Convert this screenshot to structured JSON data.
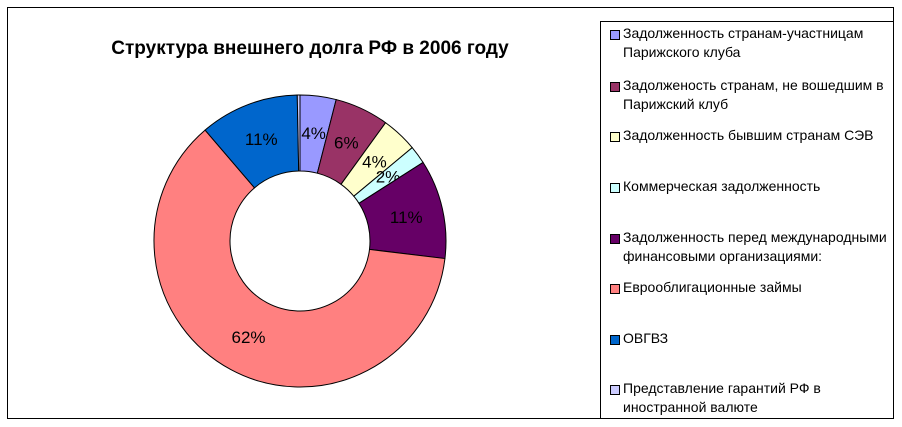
{
  "chart_data": {
    "type": "pie",
    "variant": "doughnut",
    "title": "Структура внешнего долга РФ в 2006 году",
    "legend_position": "right",
    "slices": [
      {
        "label": "Задолженность странам-участницам Парижского клуба",
        "value": 4,
        "display": "4%",
        "color": "#9999FF"
      },
      {
        "label": "Задолженость странам, не вошедшим в Парижский клуб",
        "value": 6,
        "display": "6%",
        "color": "#993366"
      },
      {
        "label": "Задолженность бывшим странам СЭВ",
        "value": 4,
        "display": "4%",
        "color": "#FFFFCC"
      },
      {
        "label": "Коммерческая задолженность",
        "value": 2,
        "display": "2%",
        "color": "#CCFFFF"
      },
      {
        "label": "Задолженность перед международными финансовыми организациями:",
        "value": 11,
        "display": "11%",
        "color": "#660066"
      },
      {
        "label": "Еврооблигационные займы",
        "value": 62,
        "display": "62%",
        "color": "#FF8080"
      },
      {
        "label": "ОВГВЗ",
        "value": 11,
        "display": "11%",
        "color": "#0066CC"
      },
      {
        "label": "Представление гарантий РФ в иностранной валюте",
        "value": 0.3,
        "display": "",
        "color": "#CCCCFF"
      }
    ]
  }
}
